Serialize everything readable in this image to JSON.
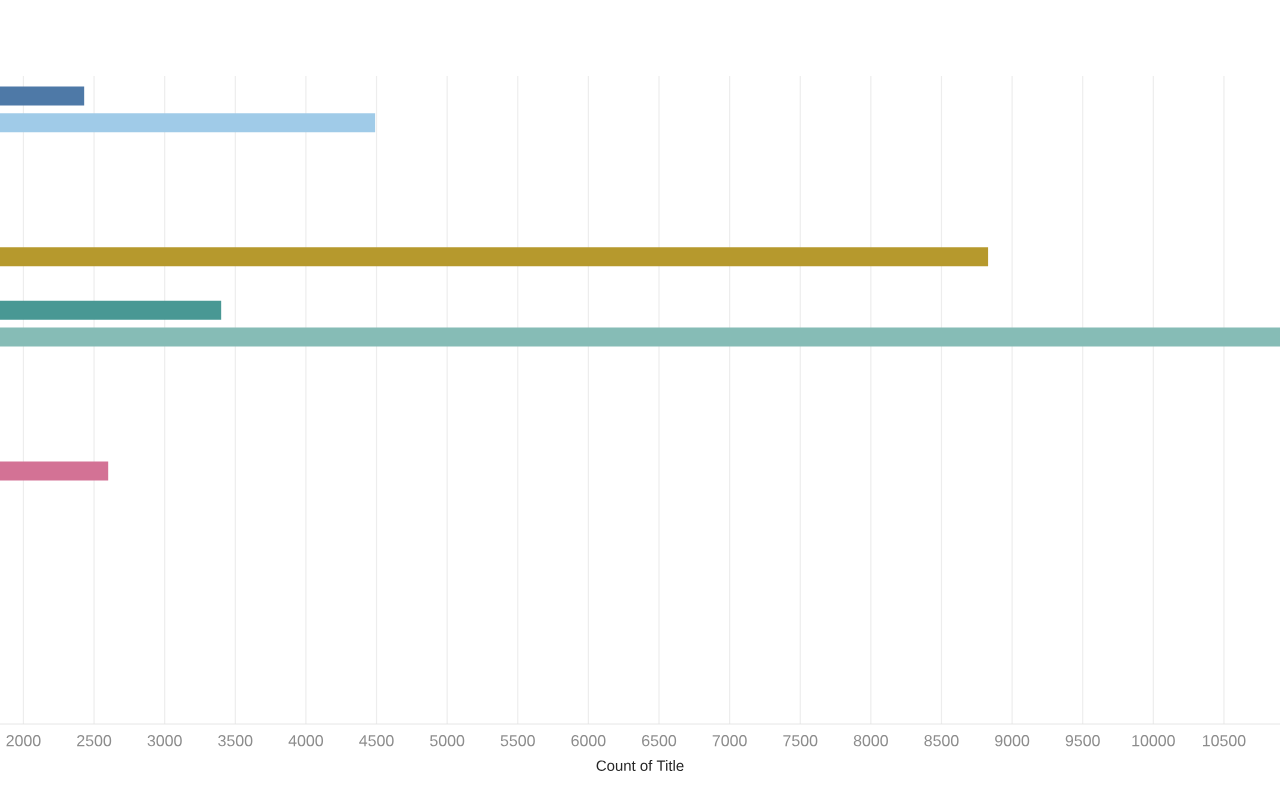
{
  "chart_data": {
    "type": "bar",
    "orientation": "horizontal",
    "xlabel": "Count of Title",
    "categories": [
      null,
      null,
      null,
      null,
      null,
      null,
      null,
      null,
      null,
      null,
      null,
      null,
      null,
      null,
      null,
      null,
      null,
      null,
      null,
      null,
      null,
      null,
      null,
      null
    ],
    "values": [
      2430,
      4490,
      null,
      null,
      null,
      null,
      8830,
      null,
      3400,
      10897,
      null,
      null,
      null,
      null,
      2600,
      null,
      null,
      null,
      null,
      null,
      null,
      null,
      null,
      null
    ],
    "colors": [
      "#4e79a7",
      "#a0cbe8",
      null,
      null,
      null,
      null,
      "#b6992d",
      null,
      "#499894",
      "#86bcb6",
      null,
      null,
      null,
      null,
      "#d37295",
      null,
      null,
      null,
      null,
      null,
      null,
      null,
      null,
      null
    ],
    "xlim": [
      1834,
      10897
    ],
    "xticks": [
      2000,
      2500,
      3000,
      3500,
      4000,
      4500,
      5000,
      5500,
      6000,
      6500,
      7000,
      7500,
      8000,
      8500,
      9000,
      9500,
      10000,
      10500
    ],
    "grid": "x",
    "tick_labels": "x"
  }
}
